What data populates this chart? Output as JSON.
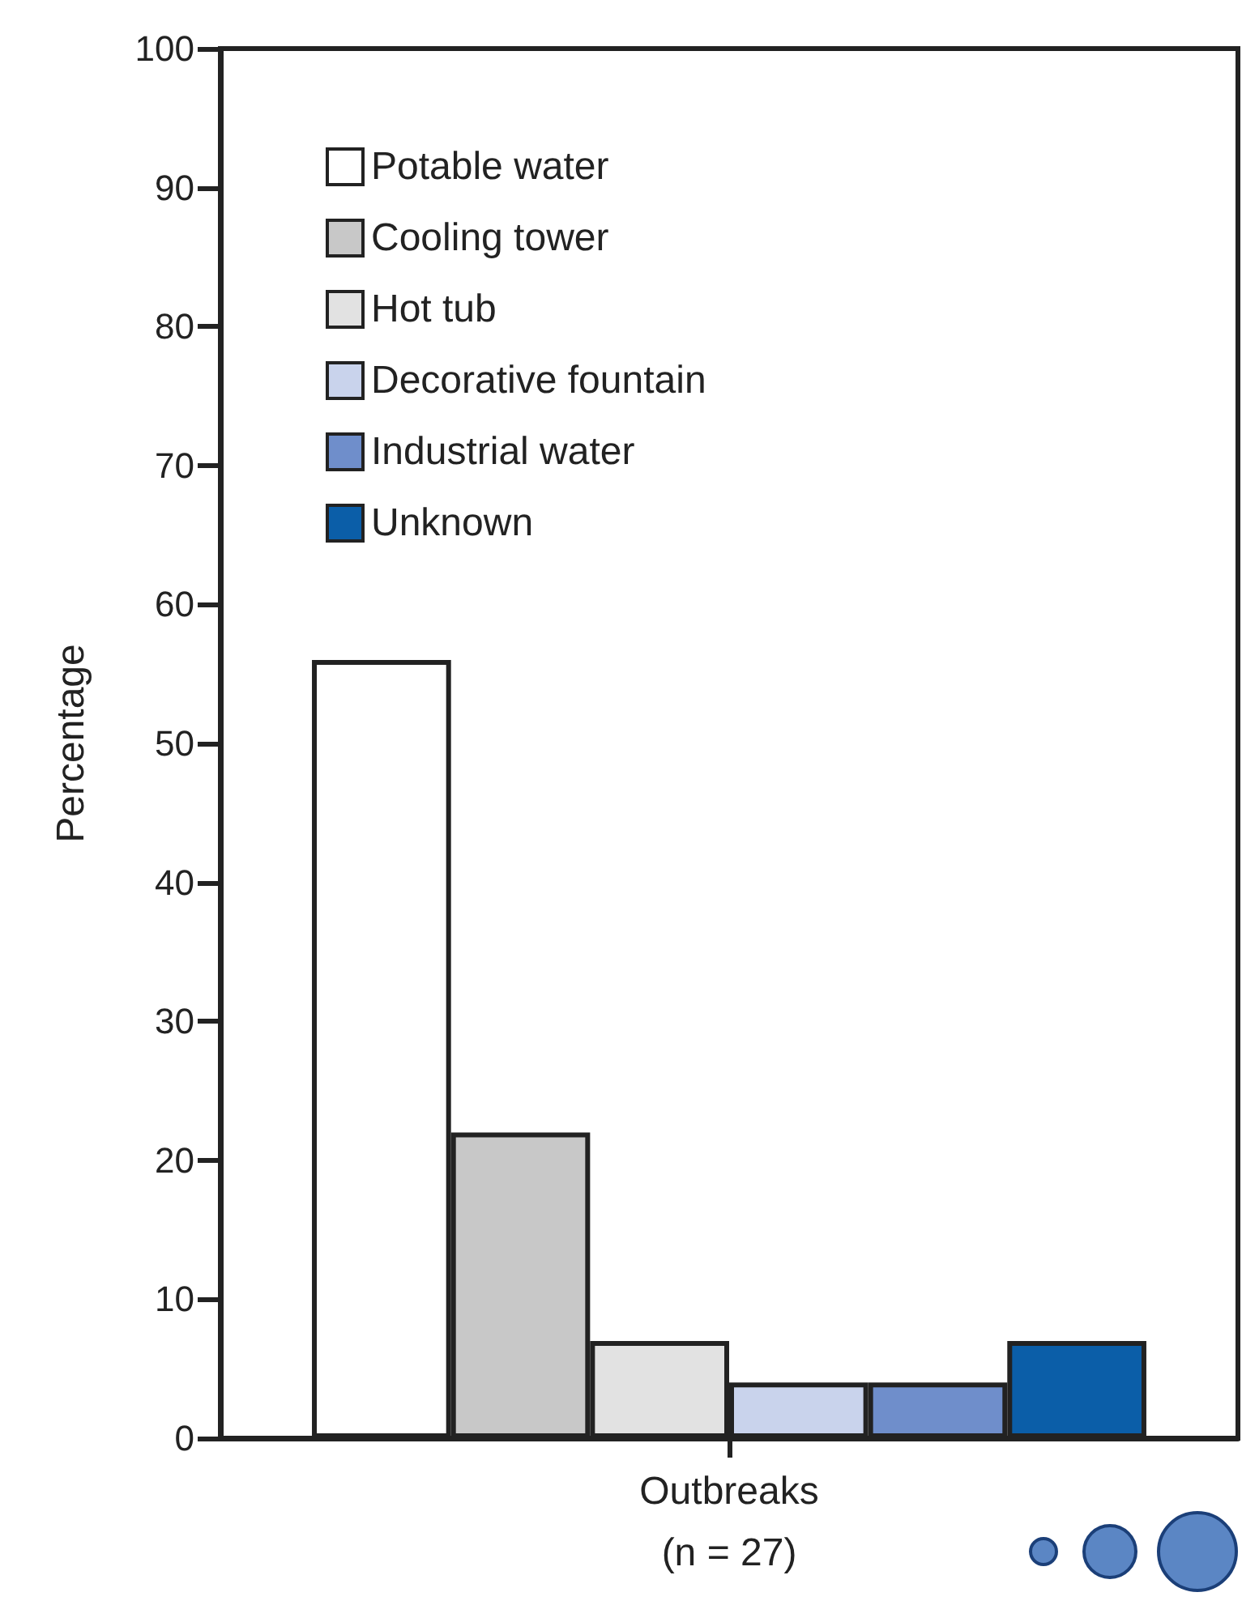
{
  "chart_data": {
    "type": "bar",
    "ylabel": "Percentage",
    "categories": [
      "Outbreaks\n(n = 27)"
    ],
    "series": [
      {
        "name": "Potable water",
        "color": "#ffffff",
        "values": [
          56
        ]
      },
      {
        "name": "Cooling tower",
        "color": "#c8c8c8",
        "values": [
          22
        ]
      },
      {
        "name": "Hot tub",
        "color": "#e2e2e2",
        "values": [
          7
        ]
      },
      {
        "name": "Decorative fountain",
        "color": "#c9d3ec",
        "values": [
          4
        ]
      },
      {
        "name": "Industrial water",
        "color": "#6f8ecb",
        "values": [
          4
        ]
      },
      {
        "name": "Unknown",
        "color": "#0b5ea8",
        "values": [
          7
        ]
      }
    ],
    "ylim": [
      0,
      100
    ],
    "yticks": [
      0,
      10,
      20,
      30,
      40,
      50,
      60,
      70,
      80,
      90,
      100
    ],
    "grid": false,
    "legend": "top left"
  }
}
